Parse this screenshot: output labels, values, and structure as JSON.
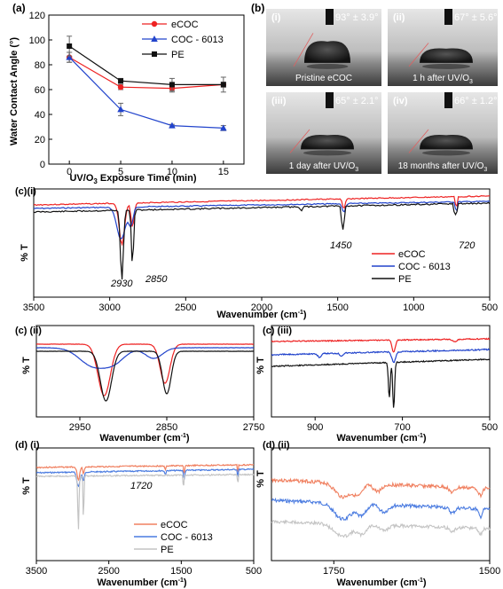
{
  "panel_a": {
    "label": "(a)",
    "ylabel": "Water Contact Angle (°)",
    "xlabel": "UV/O3 Exposure Time (min)",
    "xlabel_main": "UV/O",
    "xlabel_sub": "3",
    "xlabel_rest": " Exposure Time (min)"
  },
  "panel_b": {
    "label": "(b)",
    "photos": [
      {
        "roman": "(i)",
        "angle": "93° ± 3.9°",
        "caption": "Pristine eCOC"
      },
      {
        "roman": "(ii)",
        "angle": "67° ± 5.6°",
        "caption": "1 h after UV/O",
        "caption_sub": "3"
      },
      {
        "roman": "(iii)",
        "angle": "65° ± 2.1°",
        "caption": "1 day after UV/O",
        "caption_sub": "3"
      },
      {
        "roman": "(iv)",
        "angle": "66° ± 1.2°",
        "caption": "18 months after UV/O",
        "caption_sub": "3"
      }
    ]
  },
  "panel_ci": {
    "label": "(c)(i)",
    "ylabel": "% T",
    "xlabel": "Wavenumber (cm-1)",
    "xlabel_main": "Wavenumber (cm",
    "xlabel_sup": "-1",
    "xlabel_end": ")",
    "annotations": [
      "2930",
      "2850",
      "1450",
      "720"
    ]
  },
  "panel_cii": {
    "label": "(c) (ii)",
    "ylabel": "% T",
    "xlabel_main": "Wavenumber (cm",
    "xlabel_sup": "-1",
    "xlabel_end": ")"
  },
  "panel_ciii": {
    "label": "(c) (iii)",
    "ylabel": "% T",
    "xlabel_main": "Wavenumber (cm",
    "xlabel_sup": "-1",
    "xlabel_end": ")"
  },
  "panel_di": {
    "label": "(d) (i)",
    "ylabel": "% T",
    "xlabel_main": "Wavenumber (cm",
    "xlabel_sup": "-1",
    "xlabel_end": ")",
    "annotation": "1720"
  },
  "panel_dii": {
    "label": "(d) (ii)",
    "ylabel": "% T",
    "xlabel_main": "Wavenumber (cm",
    "xlabel_sup": "-1",
    "xlabel_end": ")"
  },
  "colors": {
    "ecoc": "#ee2222",
    "coc": "#2244cc",
    "pe": "#111111",
    "ecoc_light": "#f08060",
    "coc_light": "#4a7be0",
    "pe_light": "#c4c4c4"
  },
  "chart_data": [
    {
      "type": "line",
      "id": "a",
      "x": [
        0,
        5,
        10,
        15
      ],
      "xlim": [
        -2,
        17
      ],
      "ylim": [
        0,
        120
      ],
      "xticks": [
        0,
        5,
        10,
        15
      ],
      "yticks": [
        0,
        20,
        40,
        60,
        80,
        100,
        120
      ],
      "xlabel": "UV/O3 Exposure Time (min)",
      "ylabel": "Water Contact Angle (°)",
      "legend_position": "top-right",
      "series": [
        {
          "name": "eCOC",
          "values": [
            86,
            62,
            61,
            64
          ],
          "errors": [
            4,
            2,
            3,
            2
          ],
          "marker": "circle"
        },
        {
          "name": "COC - 6013",
          "values": [
            86,
            44,
            31,
            29
          ],
          "errors": [
            4,
            5,
            1,
            2
          ],
          "marker": "triangle"
        },
        {
          "name": "PE",
          "values": [
            95,
            67,
            64,
            64
          ],
          "errors": [
            8,
            2,
            5,
            6
          ],
          "marker": "square"
        }
      ]
    },
    {
      "type": "line",
      "id": "c_i",
      "xlim": [
        3500,
        500
      ],
      "xticks": [
        3500,
        3000,
        2500,
        2000,
        1500,
        1000,
        500
      ],
      "ylabel": "% T",
      "xlabel": "Wavenumber (cm-1)",
      "legend_position": "right",
      "series": [
        {
          "name": "eCOC"
        },
        {
          "name": "COC - 6013"
        },
        {
          "name": "PE"
        }
      ]
    },
    {
      "type": "line",
      "id": "c_ii",
      "xlim": [
        3000,
        2750
      ],
      "xticks": [
        2950,
        2850,
        2750
      ],
      "ylabel": "% T"
    },
    {
      "type": "line",
      "id": "c_iii",
      "xlim": [
        1000,
        500
      ],
      "xticks": [
        900,
        700,
        500
      ],
      "ylabel": "% T"
    },
    {
      "type": "line",
      "id": "d_i",
      "xlim": [
        3500,
        500
      ],
      "xticks": [
        3500,
        2500,
        1500,
        500
      ],
      "ylabel": "% T",
      "legend_position": "bottom-center",
      "series": [
        {
          "name": "eCOC"
        },
        {
          "name": "COC - 6013"
        },
        {
          "name": "PE"
        }
      ]
    },
    {
      "type": "line",
      "id": "d_ii",
      "xlim": [
        1850,
        1500
      ],
      "xticks": [
        1750,
        1500
      ],
      "ylabel": "% T"
    }
  ]
}
